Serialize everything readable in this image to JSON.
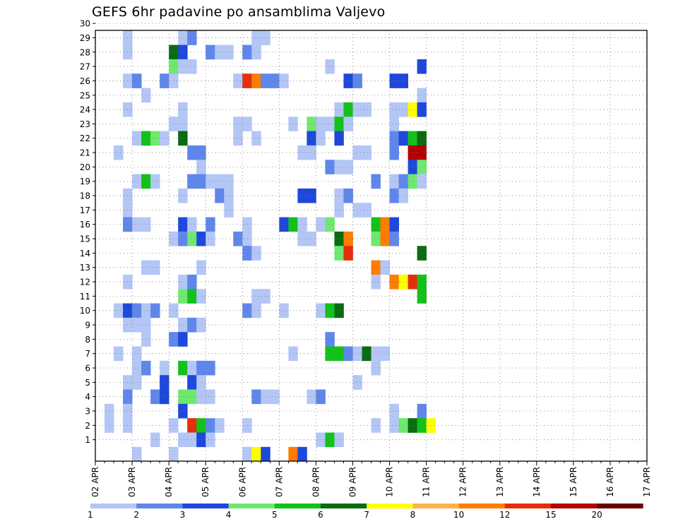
{
  "chart_data": {
    "type": "heatmap",
    "title": "GEFS 6hr padavine po ansamblima Valjevo",
    "xlabel": "",
    "ylabel": "",
    "x_ticks": [
      "02 APR",
      "03 APR",
      "04 APR",
      "05 APR",
      "06 APR",
      "07 APR",
      "08 APR",
      "09 APR",
      "10 APR",
      "11 APR",
      "12 APR",
      "13 APR",
      "14 APR",
      "15 APR",
      "16 APR",
      "17 APR"
    ],
    "y_ticks": [
      "1",
      "2",
      "3",
      "4",
      "5",
      "6",
      "7",
      "8",
      "9",
      "10",
      "11",
      "12",
      "13",
      "14",
      "15",
      "16",
      "17",
      "18",
      "19",
      "20",
      "21",
      "22",
      "23",
      "24",
      "25",
      "26",
      "27",
      "28",
      "29",
      "30"
    ],
    "grid": true,
    "legend": {
      "placement": "bottom",
      "levels": [
        "1",
        "2",
        "3",
        "4",
        "5",
        "6",
        "7",
        "8",
        "10",
        "12",
        "15",
        "20"
      ],
      "colors": [
        "#b3c6f5",
        "#5f86ea",
        "#1e48dc",
        "#6fe86f",
        "#12c21a",
        "#0b6b10",
        "#ffff00",
        "#ffb14a",
        "#ff7c00",
        "#e52e0c",
        "#b30000",
        "#6a0000"
      ]
    },
    "time_step_hours": 6,
    "cells_note": "each cell: [member, time_step_index from 02 APR 00Z, category 0-11]",
    "cells": [
      [
        30,
        3,
        0
      ],
      [
        30,
        4,
        0
      ],
      [
        30,
        9,
        0
      ],
      [
        30,
        10,
        0
      ],
      [
        30,
        11,
        0
      ],
      [
        30,
        18,
        0
      ],
      [
        30,
        27,
        0
      ],
      [
        29,
        3,
        0
      ],
      [
        29,
        9,
        0
      ],
      [
        29,
        10,
        1
      ],
      [
        29,
        17,
        0
      ],
      [
        29,
        18,
        0
      ],
      [
        28,
        3,
        0
      ],
      [
        28,
        8,
        5
      ],
      [
        28,
        9,
        2
      ],
      [
        28,
        12,
        1
      ],
      [
        28,
        13,
        0
      ],
      [
        28,
        14,
        0
      ],
      [
        28,
        16,
        1
      ],
      [
        28,
        17,
        0
      ],
      [
        27,
        8,
        3
      ],
      [
        27,
        9,
        0
      ],
      [
        27,
        10,
        0
      ],
      [
        27,
        25,
        0
      ],
      [
        27,
        35,
        2
      ],
      [
        26,
        3,
        0
      ],
      [
        26,
        4,
        1
      ],
      [
        26,
        7,
        1
      ],
      [
        26,
        8,
        0
      ],
      [
        26,
        15,
        0
      ],
      [
        26,
        16,
        9
      ],
      [
        26,
        17,
        8
      ],
      [
        26,
        18,
        1
      ],
      [
        26,
        19,
        1
      ],
      [
        26,
        20,
        0
      ],
      [
        26,
        27,
        2
      ],
      [
        26,
        28,
        1
      ],
      [
        26,
        32,
        2
      ],
      [
        26,
        33,
        2
      ],
      [
        25,
        5,
        0
      ],
      [
        25,
        35,
        0
      ],
      [
        24,
        3,
        0
      ],
      [
        24,
        9,
        0
      ],
      [
        24,
        26,
        0
      ],
      [
        24,
        27,
        4
      ],
      [
        24,
        28,
        0
      ],
      [
        24,
        29,
        0
      ],
      [
        24,
        32,
        0
      ],
      [
        24,
        33,
        0
      ],
      [
        24,
        34,
        6
      ],
      [
        24,
        35,
        2
      ],
      [
        23,
        8,
        0
      ],
      [
        23,
        9,
        0
      ],
      [
        23,
        15,
        0
      ],
      [
        23,
        16,
        0
      ],
      [
        23,
        21,
        0
      ],
      [
        23,
        23,
        3
      ],
      [
        23,
        24,
        0
      ],
      [
        23,
        25,
        0
      ],
      [
        23,
        26,
        4
      ],
      [
        23,
        27,
        0
      ],
      [
        23,
        32,
        0
      ],
      [
        22,
        4,
        0
      ],
      [
        22,
        5,
        4
      ],
      [
        22,
        6,
        3
      ],
      [
        22,
        7,
        0
      ],
      [
        22,
        9,
        5
      ],
      [
        22,
        15,
        0
      ],
      [
        22,
        17,
        0
      ],
      [
        22,
        23,
        2
      ],
      [
        22,
        24,
        0
      ],
      [
        22,
        26,
        2
      ],
      [
        22,
        32,
        1
      ],
      [
        22,
        33,
        2
      ],
      [
        22,
        34,
        4
      ],
      [
        22,
        35,
        5
      ],
      [
        21,
        2,
        0
      ],
      [
        21,
        10,
        1
      ],
      [
        21,
        11,
        1
      ],
      [
        21,
        22,
        0
      ],
      [
        21,
        23,
        0
      ],
      [
        21,
        28,
        0
      ],
      [
        21,
        29,
        0
      ],
      [
        21,
        32,
        1
      ],
      [
        21,
        34,
        10
      ],
      [
        21,
        35,
        10
      ],
      [
        20,
        11,
        0
      ],
      [
        20,
        25,
        1
      ],
      [
        20,
        26,
        0
      ],
      [
        20,
        27,
        0
      ],
      [
        20,
        34,
        2
      ],
      [
        20,
        35,
        3
      ],
      [
        19,
        4,
        0
      ],
      [
        19,
        5,
        4
      ],
      [
        19,
        6,
        0
      ],
      [
        19,
        10,
        1
      ],
      [
        19,
        11,
        1
      ],
      [
        19,
        12,
        0
      ],
      [
        19,
        13,
        0
      ],
      [
        19,
        14,
        0
      ],
      [
        19,
        30,
        1
      ],
      [
        19,
        32,
        0
      ],
      [
        19,
        33,
        1
      ],
      [
        19,
        34,
        3
      ],
      [
        19,
        35,
        0
      ],
      [
        18,
        3,
        0
      ],
      [
        18,
        9,
        0
      ],
      [
        18,
        13,
        1
      ],
      [
        18,
        14,
        0
      ],
      [
        18,
        22,
        2
      ],
      [
        18,
        23,
        2
      ],
      [
        18,
        26,
        0
      ],
      [
        18,
        27,
        1
      ],
      [
        18,
        32,
        1
      ],
      [
        18,
        33,
        0
      ],
      [
        17,
        3,
        0
      ],
      [
        17,
        14,
        0
      ],
      [
        17,
        26,
        0
      ],
      [
        17,
        28,
        0
      ],
      [
        17,
        29,
        0
      ],
      [
        16,
        3,
        1
      ],
      [
        16,
        4,
        0
      ],
      [
        16,
        5,
        0
      ],
      [
        16,
        9,
        2
      ],
      [
        16,
        10,
        0
      ],
      [
        16,
        12,
        1
      ],
      [
        16,
        16,
        0
      ],
      [
        16,
        20,
        2
      ],
      [
        16,
        21,
        4
      ],
      [
        16,
        22,
        0
      ],
      [
        16,
        24,
        0
      ],
      [
        16,
        25,
        3
      ],
      [
        16,
        30,
        4
      ],
      [
        16,
        31,
        8
      ],
      [
        16,
        32,
        2
      ],
      [
        15,
        8,
        0
      ],
      [
        15,
        9,
        1
      ],
      [
        15,
        10,
        3
      ],
      [
        15,
        11,
        2
      ],
      [
        15,
        12,
        0
      ],
      [
        15,
        15,
        1
      ],
      [
        15,
        16,
        0
      ],
      [
        15,
        22,
        0
      ],
      [
        15,
        23,
        0
      ],
      [
        15,
        26,
        5
      ],
      [
        15,
        27,
        8
      ],
      [
        15,
        30,
        3
      ],
      [
        15,
        31,
        8
      ],
      [
        15,
        32,
        1
      ],
      [
        14,
        16,
        1
      ],
      [
        14,
        17,
        0
      ],
      [
        14,
        26,
        3
      ],
      [
        14,
        27,
        9
      ],
      [
        14,
        35,
        5
      ],
      [
        13,
        5,
        0
      ],
      [
        13,
        6,
        0
      ],
      [
        13,
        11,
        0
      ],
      [
        13,
        30,
        8
      ],
      [
        13,
        31,
        0
      ],
      [
        12,
        3,
        0
      ],
      [
        12,
        9,
        0
      ],
      [
        12,
        10,
        1
      ],
      [
        12,
        30,
        0
      ],
      [
        12,
        32,
        8
      ],
      [
        12,
        33,
        6
      ],
      [
        12,
        34,
        9
      ],
      [
        12,
        35,
        4
      ],
      [
        11,
        9,
        3
      ],
      [
        11,
        10,
        4
      ],
      [
        11,
        11,
        0
      ],
      [
        11,
        17,
        0
      ],
      [
        11,
        18,
        0
      ],
      [
        11,
        35,
        4
      ],
      [
        10,
        2,
        0
      ],
      [
        10,
        3,
        2
      ],
      [
        10,
        4,
        1
      ],
      [
        10,
        5,
        0
      ],
      [
        10,
        6,
        1
      ],
      [
        10,
        8,
        0
      ],
      [
        10,
        16,
        1
      ],
      [
        10,
        17,
        0
      ],
      [
        10,
        20,
        0
      ],
      [
        10,
        24,
        0
      ],
      [
        10,
        25,
        4
      ],
      [
        10,
        26,
        5
      ],
      [
        9,
        3,
        0
      ],
      [
        9,
        4,
        0
      ],
      [
        9,
        5,
        0
      ],
      [
        9,
        9,
        0
      ],
      [
        9,
        10,
        1
      ],
      [
        9,
        11,
        0
      ],
      [
        8,
        5,
        0
      ],
      [
        8,
        8,
        1
      ],
      [
        8,
        9,
        2
      ],
      [
        8,
        25,
        1
      ],
      [
        7,
        2,
        0
      ],
      [
        7,
        4,
        0
      ],
      [
        7,
        21,
        0
      ],
      [
        7,
        25,
        4
      ],
      [
        7,
        26,
        4
      ],
      [
        7,
        27,
        1
      ],
      [
        7,
        28,
        0
      ],
      [
        7,
        29,
        5
      ],
      [
        7,
        30,
        0
      ],
      [
        7,
        31,
        0
      ],
      [
        6,
        4,
        0
      ],
      [
        6,
        5,
        1
      ],
      [
        6,
        7,
        0
      ],
      [
        6,
        9,
        4
      ],
      [
        6,
        10,
        0
      ],
      [
        6,
        11,
        1
      ],
      [
        6,
        12,
        1
      ],
      [
        6,
        30,
        0
      ],
      [
        5,
        3,
        0
      ],
      [
        5,
        4,
        0
      ],
      [
        5,
        7,
        2
      ],
      [
        5,
        10,
        2
      ],
      [
        5,
        11,
        0
      ],
      [
        5,
        28,
        0
      ],
      [
        4,
        3,
        1
      ],
      [
        4,
        6,
        1
      ],
      [
        4,
        7,
        2
      ],
      [
        4,
        9,
        3
      ],
      [
        4,
        10,
        3
      ],
      [
        4,
        11,
        0
      ],
      [
        4,
        12,
        0
      ],
      [
        4,
        17,
        1
      ],
      [
        4,
        18,
        0
      ],
      [
        4,
        19,
        0
      ],
      [
        4,
        23,
        0
      ],
      [
        4,
        24,
        1
      ],
      [
        3,
        1,
        0
      ],
      [
        3,
        3,
        0
      ],
      [
        3,
        9,
        2
      ],
      [
        3,
        32,
        0
      ],
      [
        3,
        35,
        1
      ],
      [
        2,
        1,
        0
      ],
      [
        2,
        3,
        0
      ],
      [
        2,
        8,
        0
      ],
      [
        2,
        10,
        9
      ],
      [
        2,
        11,
        4
      ],
      [
        2,
        12,
        1
      ],
      [
        2,
        13,
        0
      ],
      [
        2,
        16,
        0
      ],
      [
        2,
        30,
        0
      ],
      [
        2,
        32,
        0
      ],
      [
        2,
        33,
        3
      ],
      [
        2,
        34,
        5
      ],
      [
        2,
        35,
        4
      ],
      [
        2,
        36,
        6
      ],
      [
        1,
        6,
        0
      ],
      [
        1,
        9,
        0
      ],
      [
        1,
        10,
        0
      ],
      [
        1,
        11,
        2
      ],
      [
        1,
        12,
        0
      ],
      [
        1,
        24,
        0
      ],
      [
        1,
        25,
        4
      ],
      [
        1,
        26,
        0
      ],
      [
        0,
        4,
        0
      ],
      [
        0,
        8,
        0
      ],
      [
        0,
        16,
        0
      ],
      [
        0,
        17,
        6
      ],
      [
        0,
        18,
        2
      ],
      [
        0,
        21,
        8
      ],
      [
        0,
        22,
        2
      ]
    ]
  }
}
